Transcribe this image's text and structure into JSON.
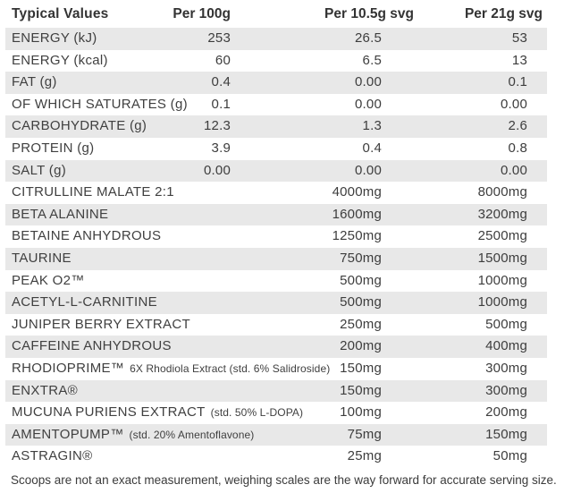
{
  "table": {
    "headers": [
      "Typical Values",
      "Per 100g",
      "Per 10.5g svg",
      "Per 21g svg"
    ],
    "rows": [
      {
        "label": "ENERGY (kJ)",
        "per_100g": "253",
        "per_10_5g": "26.5",
        "per_21g": "53"
      },
      {
        "label": "ENERGY (kcal)",
        "per_100g": "60",
        "per_10_5g": "6.5",
        "per_21g": "13"
      },
      {
        "label": "FAT (g)",
        "per_100g": "0.4",
        "per_10_5g": "0.00",
        "per_21g": "0.1"
      },
      {
        "label": "OF WHICH SATURATES (g)",
        "per_100g": "0.1",
        "per_10_5g": "0.00",
        "per_21g": "0.00"
      },
      {
        "label": "CARBOHYDRATE (g)",
        "per_100g": "12.3",
        "per_10_5g": "1.3",
        "per_21g": "2.6"
      },
      {
        "label": "PROTEIN (g)",
        "per_100g": "3.9",
        "per_10_5g": "0.4",
        "per_21g": "0.8"
      },
      {
        "label": "SALT (g)",
        "per_100g": "0.00",
        "per_10_5g": "0.00",
        "per_21g": "0.00"
      },
      {
        "label": "CITRULLINE MALATE  2:1",
        "per_10_5g": "4000mg",
        "per_21g": "8000mg"
      },
      {
        "label": "BETA ALANINE",
        "per_10_5g": "1600mg",
        "per_21g": "3200mg"
      },
      {
        "label": "BETAINE ANHYDROUS",
        "per_10_5g": "1250mg",
        "per_21g": "2500mg"
      },
      {
        "label": "TAURINE",
        "per_10_5g": "750mg",
        "per_21g": "1500mg"
      },
      {
        "label": "PEAK O2™",
        "per_10_5g": "500mg",
        "per_21g": "1000mg"
      },
      {
        "label": "ACETYL-L-CARNITINE",
        "per_10_5g": "500mg",
        "per_21g": "1000mg"
      },
      {
        "label": "JUNIPER BERRY EXTRACT",
        "per_10_5g": "250mg",
        "per_21g": "500mg"
      },
      {
        "label": "CAFFEINE ANHYDROUS",
        "per_10_5g": "200mg",
        "per_21g": "400mg"
      },
      {
        "label": "RHODIOPRIME™",
        "sub": "6X Rhodiola Extract (std. 6% Salidroside)",
        "per_10_5g": "150mg",
        "per_21g": "300mg"
      },
      {
        "label": "ENXTRA®",
        "per_10_5g": "150mg",
        "per_21g": "300mg"
      },
      {
        "label": "MUCUNA PURIENS EXTRACT",
        "sub": "(std. 50% L-DOPA)",
        "per_10_5g": "100mg",
        "per_21g": "200mg"
      },
      {
        "label": "AMENTOPUMP™",
        "sub": "(std. 20% Amentoflavone)",
        "per_10_5g": "75mg",
        "per_21g": "150mg"
      },
      {
        "label": "ASTRAGIN®",
        "per_10_5g": "25mg",
        "per_21g": "50mg"
      }
    ]
  },
  "footer": {
    "note": "Scoops are not an exact measurement, weighing scales are the way forward for accurate serving size."
  },
  "colors": {
    "background": "#ffffff",
    "stripe": "#e8e8e8",
    "text": "#3d3d3d"
  }
}
